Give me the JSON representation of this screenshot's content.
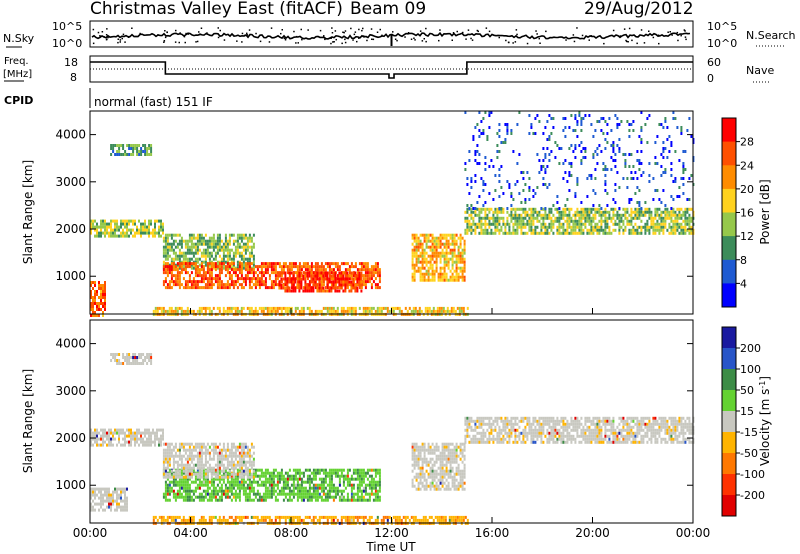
{
  "header": {
    "station": "Christmas Valley East (fitACF)",
    "beam": "Beam 09",
    "date": "29/Aug/2012"
  },
  "top_panels": {
    "nsky_label": "N.Sky",
    "nsky_ticks": [
      "10^5",
      "10^0"
    ],
    "nsearch_label": "N.Search",
    "nsearch_ticks": [
      "10^5",
      "10^0"
    ],
    "freq_label_1": "Freq.",
    "freq_label_2": "[MHz]",
    "freq_ticks": [
      "18",
      "8"
    ],
    "nave_label": "Nave",
    "nave_ticks": [
      "60",
      "0"
    ],
    "cpid_label": "CPID",
    "cpid_value": "normal (fast) 151 IF"
  },
  "chart_data": [
    {
      "type": "heatmap",
      "title": "",
      "xlabel": "Time UT",
      "ylabel": "Slant Range [km]",
      "x_ticks": [
        "00:00",
        "04:00",
        "08:00",
        "12:00",
        "16:00",
        "20:00",
        "00:00"
      ],
      "xlim_hours": [
        0,
        24
      ],
      "y_ticks": [
        1000,
        2000,
        3000,
        4000
      ],
      "ylim": [
        200,
        4500
      ],
      "colorbar": {
        "label": "Power [dB]",
        "ticks": [
          "28",
          "24",
          "20",
          "16",
          "12",
          "8",
          "4"
        ],
        "colors": [
          "#ff0000",
          "#ff5000",
          "#ff8c00",
          "#ffd21e",
          "#96c84b",
          "#3c8c5a",
          "#1e5ad2",
          "#0000ff"
        ]
      },
      "echo_regions": [
        {
          "t": [
            0,
            2.9
          ],
          "r": [
            1850,
            2200
          ],
          "level": 13
        },
        {
          "t": [
            0.8,
            2.4
          ],
          "r": [
            3550,
            3800
          ],
          "level": 9
        },
        {
          "t": [
            0,
            0.6
          ],
          "r": [
            200,
            900
          ],
          "level": 22
        },
        {
          "t": [
            2.9,
            6.5
          ],
          "r": [
            1200,
            1900
          ],
          "level": 11
        },
        {
          "t": [
            2.9,
            11.5
          ],
          "r": [
            750,
            1300
          ],
          "level": 23
        },
        {
          "t": [
            7.5,
            10.8
          ],
          "r": [
            700,
            1100
          ],
          "level": 26
        },
        {
          "t": [
            12.8,
            14.9
          ],
          "r": [
            900,
            1900
          ],
          "level": 18
        },
        {
          "t": [
            14.9,
            24
          ],
          "r": [
            1900,
            2450
          ],
          "level": 12
        },
        {
          "t": [
            14.9,
            24
          ],
          "r": [
            2450,
            4500
          ],
          "level": 3
        },
        {
          "t": [
            2.5,
            15
          ],
          "r": [
            200,
            350
          ],
          "level": 17
        }
      ]
    },
    {
      "type": "heatmap",
      "title": "",
      "xlabel": "Time UT",
      "ylabel": "Slant Range [km]",
      "x_ticks": [
        "00:00",
        "04:00",
        "08:00",
        "12:00",
        "16:00",
        "20:00",
        "00:00"
      ],
      "xlim_hours": [
        0,
        24
      ],
      "y_ticks": [
        1000,
        2000,
        3000,
        4000
      ],
      "ylim": [
        200,
        4500
      ],
      "colorbar": {
        "label": "Velocity [m s^-1]",
        "ticks": [
          "200",
          "100",
          "50",
          "15",
          "-15",
          "-50",
          "-100",
          "-200"
        ],
        "colors": [
          "#1a1aa0",
          "#2855c8",
          "#3c8c46",
          "#64d232",
          "#c8c8c0",
          "#ffb400",
          "#ff7800",
          "#ff3200",
          "#e10000"
        ]
      },
      "echo_regions": [
        {
          "t": [
            0,
            2.9
          ],
          "r": [
            1850,
            2200
          ],
          "v": 0
        },
        {
          "t": [
            0.8,
            2.4
          ],
          "r": [
            3550,
            3800
          ],
          "v": 0
        },
        {
          "t": [
            0,
            1.5
          ],
          "r": [
            450,
            950
          ],
          "v": 0
        },
        {
          "t": [
            2.9,
            11.5
          ],
          "r": [
            700,
            1350
          ],
          "v": 40
        },
        {
          "t": [
            2.9,
            6.5
          ],
          "r": [
            1200,
            1900
          ],
          "v": 0
        },
        {
          "t": [
            12.8,
            14.9
          ],
          "r": [
            900,
            1900
          ],
          "v": 0
        },
        {
          "t": [
            14.9,
            24
          ],
          "r": [
            1900,
            2450
          ],
          "v": 0
        },
        {
          "t": [
            2.5,
            15
          ],
          "r": [
            200,
            350
          ],
          "v": -60
        }
      ]
    }
  ]
}
